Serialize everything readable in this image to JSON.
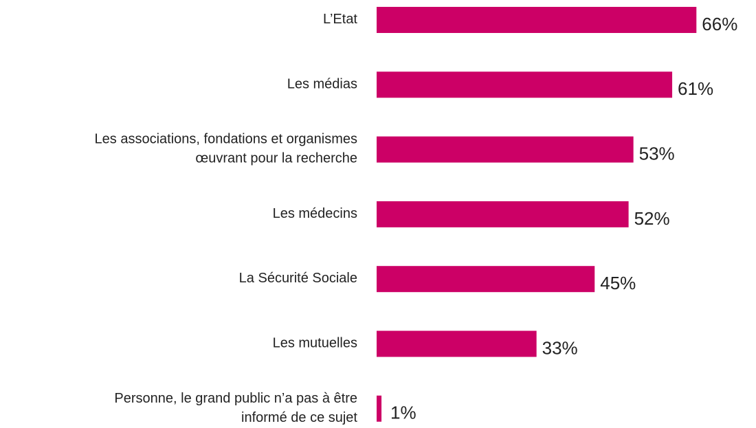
{
  "chart_data": {
    "type": "bar",
    "orientation": "horizontal",
    "categories": [
      "L’Etat",
      "Les médias",
      "Les associations, fondations et organismes\nœuvrant pour la recherche",
      "Les médecins",
      "La Sécurité Sociale",
      "Les mutuelles",
      "Personne, le grand public n’a pas à être\ninformé de ce sujet"
    ],
    "values": [
      66,
      61,
      53,
      52,
      45,
      33,
      1
    ],
    "value_labels": [
      "66%",
      "61%",
      "53%",
      "52%",
      "45%",
      "33%",
      "1%"
    ],
    "color": "#cc0066"
  }
}
